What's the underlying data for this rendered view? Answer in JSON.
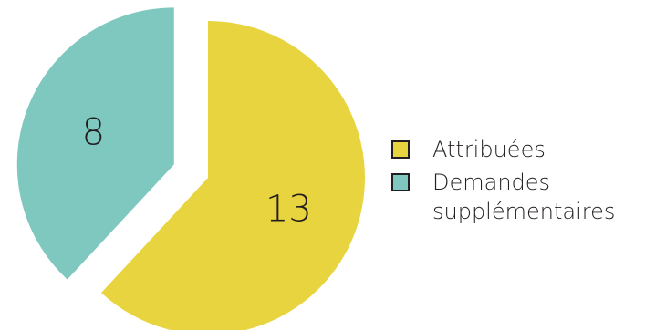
{
  "chart_data": {
    "type": "pie",
    "categories": [
      "Attribuées",
      "Demandes supplémentaires"
    ],
    "values": [
      13,
      8
    ],
    "colors": [
      "#e8d43e",
      "#7ec8bf"
    ],
    "exploded": [
      false,
      true
    ],
    "legend_position": "right",
    "legend": [
      {
        "lines": [
          "Attribuées"
        ]
      },
      {
        "lines": [
          "Demandes",
          "supplémentaires"
        ]
      }
    ]
  }
}
